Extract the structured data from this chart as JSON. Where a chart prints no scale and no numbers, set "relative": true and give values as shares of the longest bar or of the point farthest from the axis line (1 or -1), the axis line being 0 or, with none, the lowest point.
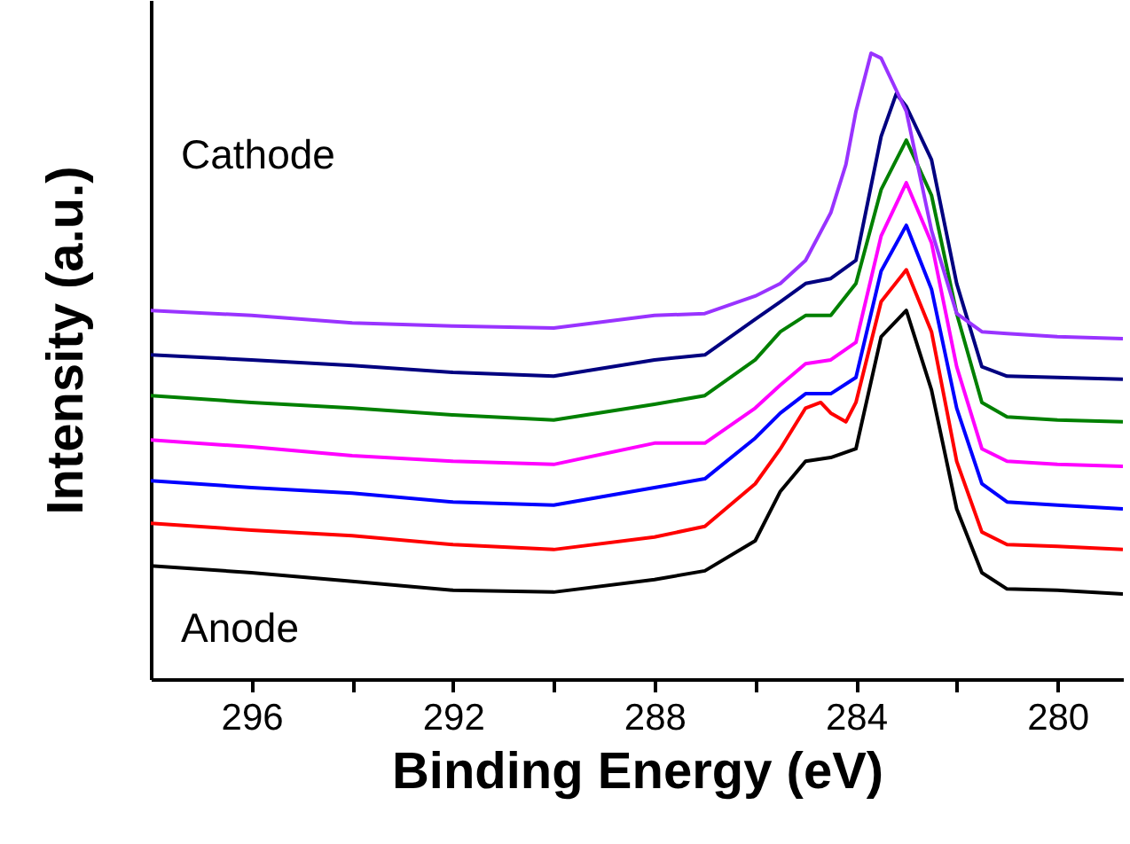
{
  "chart_data": {
    "type": "line",
    "relative": true,
    "xlabel": "Binding Energy (eV)",
    "ylabel": "Intensity (a.u.)",
    "xlim": [
      298,
      278.7
    ],
    "xticks": [
      296,
      {
        "value": 294,
        "label": null
      },
      292,
      {
        "value": 290,
        "label": null
      },
      288,
      {
        "value": 286,
        "label": null
      },
      284,
      {
        "value": 282,
        "label": null
      },
      280
    ],
    "annotations": [
      "Cathode",
      "Anode"
    ],
    "grid": false,
    "marker": "none",
    "line_style": "solid",
    "series": [
      {
        "color": "#000000",
        "x": [
          298,
          296,
          294,
          292,
          290,
          288,
          287,
          286,
          285.5,
          285,
          284.5,
          284,
          283.5,
          283,
          282.5,
          282,
          281.5,
          281,
          280,
          278.7
        ],
        "values": [
          0.181,
          0.17,
          0.156,
          0.142,
          0.139,
          0.159,
          0.173,
          0.221,
          0.3,
          0.348,
          0.354,
          0.368,
          0.547,
          0.589,
          0.462,
          0.272,
          0.17,
          0.144,
          0.142,
          0.136
        ]
      },
      {
        "color": "#ff0000",
        "x": [
          298,
          296,
          294,
          292,
          290,
          288,
          287,
          286,
          285.5,
          285,
          284.7,
          284.5,
          284.2,
          284,
          283.5,
          283,
          282.5,
          282,
          281.5,
          281,
          280,
          278.7
        ],
        "values": [
          0.249,
          0.238,
          0.229,
          0.215,
          0.207,
          0.227,
          0.244,
          0.312,
          0.368,
          0.433,
          0.442,
          0.425,
          0.411,
          0.442,
          0.603,
          0.654,
          0.555,
          0.348,
          0.235,
          0.215,
          0.212,
          0.207
        ]
      },
      {
        "color": "#0000ff",
        "x": [
          298,
          296,
          294,
          292,
          290,
          288,
          287,
          286,
          285.5,
          285,
          284.5,
          284,
          283.5,
          283,
          282.5,
          282,
          281.5,
          281,
          280,
          278.7
        ],
        "values": [
          0.317,
          0.306,
          0.297,
          0.283,
          0.278,
          0.306,
          0.32,
          0.385,
          0.425,
          0.456,
          0.456,
          0.482,
          0.652,
          0.725,
          0.623,
          0.433,
          0.312,
          0.283,
          0.278,
          0.272
        ]
      },
      {
        "color": "#ff00ff",
        "x": [
          298,
          296,
          294,
          292,
          290,
          288,
          287,
          286,
          285.5,
          285,
          284.5,
          284,
          283.5,
          283,
          282.5,
          282,
          281.5,
          281,
          280,
          278.7
        ],
        "values": [
          0.382,
          0.371,
          0.357,
          0.348,
          0.343,
          0.377,
          0.377,
          0.433,
          0.47,
          0.504,
          0.51,
          0.538,
          0.708,
          0.793,
          0.697,
          0.499,
          0.368,
          0.348,
          0.343,
          0.34
        ]
      },
      {
        "color": "#008000",
        "x": [
          298,
          296,
          294,
          292,
          290,
          288,
          287,
          286,
          285.5,
          285,
          284.5,
          284,
          283.5,
          283,
          282.5,
          282,
          281.5,
          281,
          280,
          278.7
        ],
        "values": [
          0.453,
          0.442,
          0.433,
          0.422,
          0.414,
          0.439,
          0.453,
          0.51,
          0.555,
          0.581,
          0.581,
          0.632,
          0.782,
          0.861,
          0.773,
          0.584,
          0.442,
          0.419,
          0.414,
          0.411
        ]
      },
      {
        "color": "#000080",
        "x": [
          298,
          296,
          294,
          292,
          290,
          288,
          287,
          286,
          285.5,
          285,
          284.5,
          284,
          283.5,
          283.2,
          283,
          282.5,
          282,
          281.5,
          281,
          280,
          278.7
        ],
        "values": [
          0.518,
          0.51,
          0.501,
          0.49,
          0.484,
          0.51,
          0.518,
          0.575,
          0.603,
          0.632,
          0.64,
          0.669,
          0.867,
          0.935,
          0.915,
          0.83,
          0.632,
          0.499,
          0.484,
          0.482,
          0.479
        ]
      },
      {
        "color": "#9933ff",
        "x": [
          298,
          296,
          294,
          292,
          290,
          288,
          287,
          286,
          285.5,
          285,
          284.5,
          284.2,
          284,
          283.7,
          283.5,
          283,
          282.5,
          282,
          281.5,
          281,
          280,
          278.7
        ],
        "values": [
          0.589,
          0.581,
          0.569,
          0.564,
          0.561,
          0.581,
          0.584,
          0.612,
          0.632,
          0.669,
          0.745,
          0.822,
          0.907,
          1,
          0.992,
          0.907,
          0.717,
          0.584,
          0.555,
          0.552,
          0.547,
          0.544
        ]
      }
    ]
  }
}
